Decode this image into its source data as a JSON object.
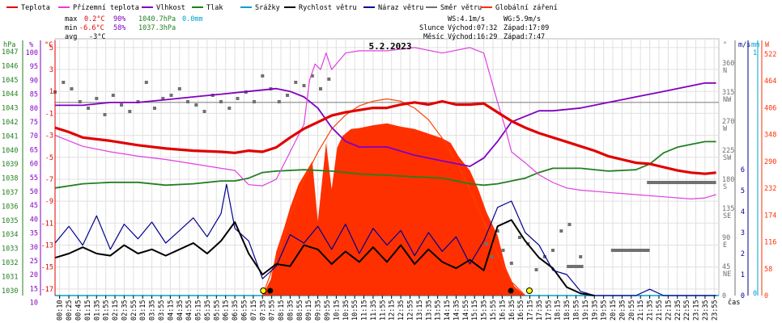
{
  "chart_data": {
    "type": "line",
    "title": "5.2.2023",
    "legend": [
      {
        "label": "Teplota",
        "color": "#e00000"
      },
      {
        "label": "Přízemní teplota",
        "color": "#e040e0"
      },
      {
        "label": "Vlhkost",
        "color": "#8000c0"
      },
      {
        "label": "Tlak",
        "color": "#208020"
      },
      {
        "label": "Srážky",
        "color": "#00a0d0"
      },
      {
        "label": "Rychlost větru",
        "color": "#000000"
      },
      {
        "label": "Náraz větru",
        "color": "#000090"
      },
      {
        "label": "Směr větru",
        "color": "#707070"
      },
      {
        "label": "Globální záření",
        "color": "#ff3000"
      }
    ],
    "stats": {
      "max": {
        "label": "max",
        "temp": "0.2°C",
        "hum": "90%",
        "press": "1040.7hPa",
        "rain": "0.0mm"
      },
      "min": {
        "label": "min",
        "temp": "-6.6°C",
        "hum": "58%",
        "press": "1037.3hPa"
      },
      "avg": {
        "label": "avg",
        "temp": "-3°C"
      }
    },
    "wind_info": {
      "ws": "WS:4.1m/s",
      "wg": "WG:5.9m/s"
    },
    "sun": {
      "label": "Slunce",
      "rise": "Východ:07:32",
      "set": "Západ:17:09"
    },
    "moon": {
      "label": "Měsíc",
      "rise": "Východ:16:29",
      "set": "Západ:7:47"
    },
    "axis_labels": {
      "hpa": "hPa",
      "pct": "%",
      "degc": "°C",
      "deg": "°",
      "ms": "m/s",
      "mm": "mm",
      "wm2": "W",
      "x": "čas"
    },
    "left_axes": {
      "hpa": [
        "1047",
        "1046",
        "1045",
        "1044",
        "1043",
        "1042",
        "1041",
        "1040",
        "1039",
        "1038",
        "1037",
        "1036",
        "1035",
        "1034",
        "1033",
        "1032",
        "1031",
        "1030"
      ],
      "pct": [
        "100",
        "95",
        "90",
        "85",
        "80",
        "75",
        "70",
        "65",
        "60",
        "55",
        "50",
        "45",
        "40",
        "35",
        "30",
        "25",
        "20",
        "15",
        "10"
      ],
      "temp": [
        "5",
        "3",
        "1",
        "-1",
        "-3",
        "-5",
        "-7",
        "-9",
        "-11",
        "-13",
        "-15",
        "-17"
      ]
    },
    "right_axes": {
      "dir_deg": [
        "360",
        "315",
        "270",
        "225",
        "180",
        "135",
        "90",
        "45",
        "0"
      ],
      "dir_name": [
        "N",
        "NW",
        "W",
        "SW",
        "S",
        "SE",
        "E",
        "NE"
      ],
      "ms": [
        "6",
        "5",
        "4",
        "3",
        "2",
        "1",
        "0"
      ],
      "mm": [
        "1",
        "0"
      ],
      "wm2": [
        "522",
        "464",
        "406",
        "348",
        "290",
        "232",
        "174",
        "116",
        "58",
        "0"
      ]
    },
    "x_ticks": [
      "00:10",
      "00:25",
      "00:45",
      "01:15",
      "01:35",
      "01:55",
      "02:15",
      "02:35",
      "02:55",
      "03:15",
      "03:35",
      "03:55",
      "04:15",
      "04:35",
      "04:55",
      "05:15",
      "05:35",
      "05:55",
      "06:15",
      "06:35",
      "06:55",
      "07:15",
      "07:35",
      "07:55",
      "08:15",
      "08:35",
      "08:55",
      "09:15",
      "09:35",
      "09:55",
      "10:15",
      "10:35",
      "10:55",
      "11:15",
      "11:35",
      "11:55",
      "12:15",
      "12:35",
      "12:55",
      "13:15",
      "13:35",
      "13:55",
      "14:15",
      "14:35",
      "14:55",
      "15:15",
      "15:35",
      "15:55",
      "16:15",
      "16:35",
      "16:55",
      "17:15",
      "17:35",
      "17:55",
      "18:15",
      "18:35",
      "18:55",
      "19:15",
      "19:35",
      "19:55",
      "20:15",
      "20:35",
      "20:55",
      "21:15",
      "21:35",
      "21:55",
      "22:15",
      "22:35",
      "22:55",
      "23:15",
      "23:35",
      "23:55"
    ],
    "series": [
      {
        "name": "Teplota",
        "unit": "°C",
        "x_hours": [
          0,
          0.5,
          1,
          2,
          3,
          4,
          5,
          6,
          6.5,
          7,
          7.5,
          8,
          8.5,
          9,
          9.5,
          10,
          10.5,
          11,
          11.5,
          12,
          12.5,
          13,
          13.5,
          14,
          14.5,
          15,
          15.5,
          16,
          16.5,
          17,
          17.5,
          18,
          18.5,
          19,
          19.5,
          20,
          20.5,
          21,
          21.5,
          22,
          22.5,
          23,
          23.5,
          23.9
        ],
        "values": [
          -2.3,
          -2.7,
          -3.2,
          -3.5,
          -3.9,
          -4.2,
          -4.4,
          -4.5,
          -4.6,
          -4.4,
          -4.5,
          -4.1,
          -3.2,
          -2.4,
          -1.8,
          -1.2,
          -0.9,
          -0.7,
          -0.5,
          -0.5,
          -0.2,
          0.0,
          -0.2,
          0.1,
          -0.2,
          -0.2,
          -0.1,
          -0.9,
          -1.7,
          -2.3,
          -2.8,
          -3.2,
          -3.6,
          -4.0,
          -4.4,
          -4.9,
          -5.2,
          -5.5,
          -5.6,
          -5.9,
          -6.2,
          -6.4,
          -6.5,
          -6.4
        ]
      },
      {
        "name": "Přízemní teplota",
        "unit": "°C",
        "x_hours": [
          0,
          0.5,
          1,
          2,
          3,
          4,
          5,
          6,
          6.5,
          7,
          7.5,
          8,
          8.5,
          9,
          9.2,
          9.4,
          9.6,
          9.8,
          10,
          10.5,
          11,
          12,
          13,
          14,
          15,
          15.5,
          16,
          16.3,
          16.5,
          17,
          17.5,
          18,
          18.5,
          19,
          20,
          21,
          22,
          23,
          23.5,
          23.9
        ],
        "values": [
          -3.0,
          -3.5,
          -4.0,
          -4.5,
          -4.9,
          -5.2,
          -5.6,
          -6.0,
          -6.2,
          -7.5,
          -7.6,
          -7.0,
          -4.5,
          -2.0,
          2.0,
          3.5,
          3.0,
          4.5,
          3.0,
          4.5,
          4.7,
          4.7,
          5.0,
          4.5,
          5.0,
          4.5,
          0.0,
          -2.5,
          -4.5,
          -5.5,
          -6.6,
          -7.3,
          -7.8,
          -8.0,
          -8.2,
          -8.4,
          -8.6,
          -8.8,
          -8.7,
          -8.4
        ]
      },
      {
        "name": "Vlhkost",
        "unit": "%",
        "x_hours": [
          0,
          1,
          2,
          3,
          4,
          5,
          6,
          7,
          8,
          8.5,
          9,
          9.5,
          10,
          10.5,
          11,
          12,
          13,
          14,
          15,
          15.5,
          16,
          16.5,
          17,
          17.5,
          18,
          19,
          20,
          21,
          22,
          23,
          23.5,
          23.9
        ],
        "values": [
          81,
          81,
          82,
          82,
          83,
          84,
          85,
          86,
          87,
          86,
          84,
          80,
          73,
          68,
          66,
          66,
          63,
          61,
          59,
          62,
          68,
          75,
          77,
          79,
          79,
          80,
          82,
          84,
          86,
          88,
          89,
          89
        ]
      },
      {
        "name": "Tlak",
        "unit": "hPa",
        "x_hours": [
          0,
          1,
          2,
          3,
          4,
          5,
          6,
          6.5,
          7,
          7.5,
          8,
          9,
          10,
          11,
          12,
          13,
          14,
          15,
          15.5,
          16,
          16.5,
          17,
          17.5,
          18,
          19,
          20,
          21,
          21.5,
          22,
          22.5,
          23,
          23.5,
          23.9
        ],
        "values": [
          1037.3,
          1037.6,
          1037.7,
          1037.7,
          1037.5,
          1037.6,
          1037.8,
          1037.8,
          1038.0,
          1038.4,
          1038.5,
          1038.6,
          1038.5,
          1038.3,
          1038.2,
          1038.1,
          1038.0,
          1037.6,
          1037.5,
          1037.6,
          1037.8,
          1038.0,
          1038.4,
          1038.7,
          1038.7,
          1038.5,
          1038.6,
          1039.0,
          1039.8,
          1040.2,
          1040.4,
          1040.6,
          1040.6
        ]
      },
      {
        "name": "Rychlost větru",
        "unit": "m/s",
        "x_hours": [
          0,
          0.5,
          1,
          1.5,
          2,
          2.5,
          3,
          3.5,
          4,
          4.5,
          5,
          5.5,
          6,
          6.5,
          7,
          7.5,
          8,
          8.5,
          9,
          9.5,
          10,
          10.5,
          11,
          11.5,
          12,
          12.5,
          13,
          13.5,
          14,
          14.5,
          15,
          15.5,
          16,
          16.5,
          17,
          17.5,
          18,
          18.5,
          19,
          19.5
        ],
        "values": [
          1.8,
          2.0,
          2.3,
          2.0,
          1.9,
          2.4,
          2.0,
          2.2,
          1.9,
          2.2,
          2.5,
          2.0,
          2.6,
          3.5,
          2.0,
          1.0,
          1.5,
          1.4,
          2.4,
          2.2,
          1.5,
          2.1,
          1.6,
          2.3,
          1.6,
          2.4,
          1.5,
          2.2,
          1.6,
          1.3,
          1.7,
          1.2,
          3.3,
          3.6,
          2.6,
          1.8,
          1.3,
          0.4,
          0.1,
          0.0
        ]
      },
      {
        "name": "Náraz větru",
        "unit": "m/s",
        "x_hours": [
          0,
          0.5,
          1,
          1.5,
          2,
          2.5,
          3,
          3.5,
          4,
          4.5,
          5,
          5.5,
          6,
          6.2,
          6.5,
          7,
          7.5,
          8,
          8.5,
          9,
          9.5,
          10,
          10.5,
          11,
          11.5,
          12,
          12.5,
          13,
          13.5,
          14,
          14.5,
          15,
          15.5,
          16,
          16.5,
          17,
          17.5,
          18,
          18.5,
          19,
          19.5,
          20,
          21,
          21.5,
          22,
          23,
          23.9
        ],
        "values": [
          2.5,
          3.3,
          2.4,
          3.8,
          2.2,
          3.4,
          2.7,
          3.5,
          2.5,
          3.1,
          3.7,
          2.8,
          3.9,
          5.3,
          3.2,
          2.6,
          0.8,
          1.4,
          2.9,
          2.5,
          3.3,
          2.2,
          3.4,
          2.0,
          3.2,
          2.4,
          3.1,
          1.9,
          3.0,
          2.1,
          2.8,
          1.5,
          2.6,
          4.2,
          4.5,
          3.0,
          2.4,
          1.2,
          1.0,
          0.2,
          0.0,
          0.0,
          0.0,
          0.3,
          0.0,
          0.0,
          0.0
        ]
      },
      {
        "name": "Globální záření",
        "unit": "W/m2",
        "x_hours": [
          7.5,
          7.8,
          8.0,
          8.3,
          8.5,
          8.8,
          9.0,
          9.3,
          9.5,
          9.8,
          10.0,
          10.2,
          10.4,
          10.7,
          11.0,
          11.5,
          12.0,
          12.5,
          13.0,
          13.5,
          14.0,
          14.3,
          14.6,
          15.0,
          15.3,
          15.6,
          16.0,
          16.3,
          16.6,
          17.0
        ],
        "values": [
          0,
          35,
          95,
          150,
          190,
          240,
          260,
          290,
          160,
          330,
          230,
          320,
          345,
          360,
          362,
          368,
          372,
          365,
          360,
          350,
          340,
          330,
          300,
          270,
          230,
          180,
          130,
          60,
          20,
          0
        ]
      },
      {
        "name": "Globální záření max",
        "unit": "W/m2",
        "x_hours": [
          7.5,
          8,
          8.5,
          9,
          9.5,
          10,
          10.5,
          11,
          11.5,
          12,
          12.5,
          13,
          13.5,
          14,
          14.5,
          15,
          15.5,
          16,
          16.5,
          17
        ],
        "values": [
          0,
          80,
          170,
          250,
          310,
          360,
          390,
          410,
          420,
          425,
          420,
          405,
          380,
          340,
          290,
          230,
          160,
          90,
          30,
          0
        ]
      },
      {
        "name": "Směr větru",
        "unit": "°",
        "x_hours": [
          0,
          0.3,
          0.6,
          0.9,
          1.2,
          1.5,
          1.8,
          2.1,
          2.4,
          2.7,
          3.0,
          3.3,
          3.6,
          3.9,
          4.2,
          4.5,
          4.8,
          5.1,
          5.4,
          5.7,
          6.0,
          6.3,
          6.6,
          6.9,
          7.2,
          7.5,
          7.8,
          8.1,
          8.4,
          8.7,
          9.0,
          9.3,
          9.6,
          9.9,
          15.6,
          15.8,
          16.0,
          16.2,
          16.5,
          16.8,
          17.1,
          17.4,
          17.7,
          18.0,
          18.3,
          18.6,
          19.0
        ],
        "values": [
          315,
          330,
          320,
          300,
          290,
          305,
          280,
          310,
          295,
          285,
          300,
          330,
          290,
          305,
          310,
          320,
          300,
          295,
          285,
          310,
          300,
          290,
          305,
          315,
          300,
          340,
          320,
          300,
          310,
          330,
          325,
          340,
          320,
          335,
          80,
          60,
          100,
          70,
          50,
          90,
          80,
          40,
          60,
          70,
          100,
          110,
          60
        ]
      }
    ]
  }
}
